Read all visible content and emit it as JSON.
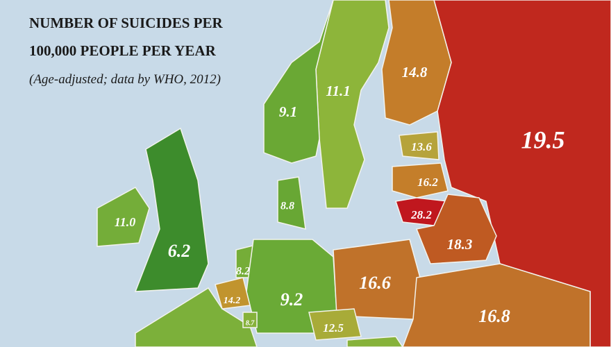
{
  "title": [
    "NUMBER OF SUICIDES PER",
    "100,000 PEOPLE PER YEAR"
  ],
  "subtitle": "(Age-adjusted; data by WHO, 2012)",
  "regions": [
    {
      "label": "19.5",
      "color": "#c0281e"
    },
    {
      "label": "14.8",
      "color": "#c47d2a"
    },
    {
      "label": "11.1",
      "color": "#8db53a"
    },
    {
      "label": "9.1",
      "color": "#6aa834"
    },
    {
      "label": "13.6",
      "color": "#b6a33b"
    },
    {
      "label": "16.2",
      "color": "#c47e2a"
    },
    {
      "label": "28.2",
      "color": "#c0171e"
    },
    {
      "label": "18.3",
      "color": "#bf5a22"
    },
    {
      "label": "8.8",
      "color": "#68a734"
    },
    {
      "label": "11.0",
      "color": "#74ad39"
    },
    {
      "label": "6.2",
      "color": "#3d8c2c"
    },
    {
      "label": "8.2",
      "color": "#75ad38"
    },
    {
      "label": "9.2",
      "color": "#6aaa36"
    },
    {
      "label": "16.6",
      "color": "#c0722a"
    },
    {
      "label": "16.8",
      "color": "#c0722a"
    },
    {
      "label": "14.2",
      "color": "#c1942e"
    },
    {
      "label": "8.7",
      "color": "#86b23a"
    },
    {
      "label": "12.5",
      "color": "#a8ab38"
    }
  ]
}
